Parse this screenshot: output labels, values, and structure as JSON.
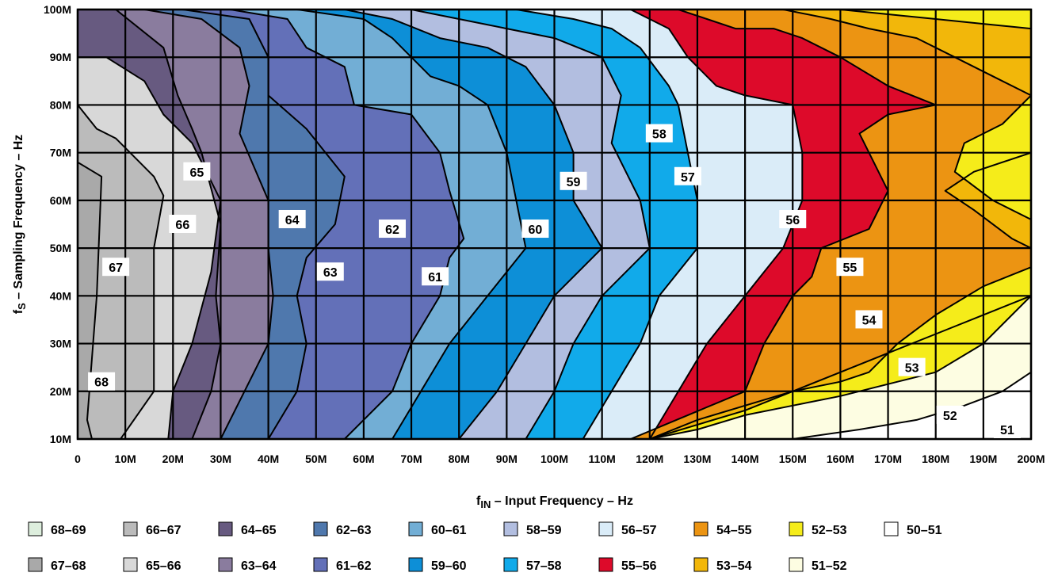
{
  "chart_data": {
    "type": "heatmap",
    "subtype": "filled-contour",
    "xlabel_main": "f",
    "xlabel_sub": "IN",
    "xlabel_rest": " – Input Frequency – Hz",
    "ylabel_main": "f",
    "ylabel_sub": "S",
    "ylabel_rest": " – Sampling Frequency – Hz",
    "xlim": [
      0,
      200
    ],
    "ylim": [
      10,
      100
    ],
    "x_tick_labels": [
      "0",
      "10M",
      "20M",
      "30M",
      "40M",
      "50M",
      "60M",
      "70M",
      "80M",
      "90M",
      "100M",
      "110M",
      "120M",
      "130M",
      "140M",
      "150M",
      "160M",
      "170M",
      "180M",
      "190M",
      "200M"
    ],
    "y_tick_labels": [
      "10M",
      "20M",
      "30M",
      "40M",
      "50M",
      "60M",
      "70M",
      "80M",
      "90M",
      "100M"
    ],
    "grid": true,
    "legend_position": "bottom",
    "bands": [
      {
        "range": "68–69",
        "color": "#ddeedd"
      },
      {
        "range": "67–68",
        "color": "#a9a9a9"
      },
      {
        "range": "66–67",
        "color": "#bbbbbb"
      },
      {
        "range": "65–66",
        "color": "#d8d8d8"
      },
      {
        "range": "64–65",
        "color": "#675a80"
      },
      {
        "range": "63–64",
        "color": "#8a7c9e"
      },
      {
        "range": "62–63",
        "color": "#4f78ad"
      },
      {
        "range": "61–62",
        "color": "#6370b8"
      },
      {
        "range": "60–61",
        "color": "#72aed5"
      },
      {
        "range": "59–60",
        "color": "#0d8fd7"
      },
      {
        "range": "58–59",
        "color": "#b2bee0"
      },
      {
        "range": "57–58",
        "color": "#11aaea"
      },
      {
        "range": "56–57",
        "color": "#daecf8"
      },
      {
        "range": "55–56",
        "color": "#dd0a2a"
      },
      {
        "range": "54–55",
        "color": "#ec9412"
      },
      {
        "range": "53–54",
        "color": "#f2b70a"
      },
      {
        "range": "52–53",
        "color": "#f5ec1a"
      },
      {
        "range": "51–52",
        "color": "#fdfde2"
      },
      {
        "range": "50–51",
        "color": "#ffffff"
      }
    ],
    "contour_labels": [
      {
        "text": "68",
        "x": 5,
        "y": 22
      },
      {
        "text": "67",
        "x": 8,
        "y": 46
      },
      {
        "text": "66",
        "x": 22,
        "y": 55
      },
      {
        "text": "65",
        "x": 25,
        "y": 66
      },
      {
        "text": "64",
        "x": 45,
        "y": 56
      },
      {
        "text": "63",
        "x": 53,
        "y": 45
      },
      {
        "text": "62",
        "x": 66,
        "y": 54
      },
      {
        "text": "61",
        "x": 75,
        "y": 44
      },
      {
        "text": "60",
        "x": 96,
        "y": 54
      },
      {
        "text": "59",
        "x": 104,
        "y": 64
      },
      {
        "text": "58",
        "x": 122,
        "y": 74
      },
      {
        "text": "57",
        "x": 128,
        "y": 65
      },
      {
        "text": "56",
        "x": 150,
        "y": 56
      },
      {
        "text": "55",
        "x": 162,
        "y": 46
      },
      {
        "text": "54",
        "x": 166,
        "y": 35
      },
      {
        "text": "53",
        "x": 175,
        "y": 25
      },
      {
        "text": "52",
        "x": 183,
        "y": 15
      },
      {
        "text": "51",
        "x": 195,
        "y": 12
      }
    ],
    "band_boundaries": [
      {
        "upper": "68–69",
        "lower": "67–68",
        "points": [
          [
            0,
            80
          ],
          [
            0,
            10
          ]
        ]
      },
      {
        "upper": "67–68",
        "lower": "66–67",
        "points": [
          [
            0,
            68
          ],
          [
            5,
            65
          ],
          [
            4,
            40
          ],
          [
            2,
            14
          ],
          [
            3,
            10
          ]
        ]
      },
      {
        "upper": "66–67",
        "lower": "65–66",
        "points": [
          [
            0,
            80
          ],
          [
            4,
            75
          ],
          [
            8,
            73
          ],
          [
            12,
            69
          ],
          [
            16,
            65
          ],
          [
            18,
            61
          ],
          [
            16,
            50
          ],
          [
            16,
            20
          ],
          [
            9,
            10
          ]
        ]
      },
      {
        "upper": "65–66",
        "lower": "64–65",
        "points": [
          [
            0,
            90
          ],
          [
            6,
            90
          ],
          [
            14,
            85
          ],
          [
            18,
            78
          ],
          [
            24,
            72
          ],
          [
            30,
            60
          ],
          [
            28,
            45
          ],
          [
            24,
            30
          ],
          [
            20,
            20
          ],
          [
            19,
            10
          ]
        ]
      },
      {
        "upper": "64–65",
        "lower": "63–64",
        "points": [
          [
            0,
            100
          ],
          [
            8,
            100
          ],
          [
            18,
            92
          ],
          [
            21,
            82
          ],
          [
            24,
            75
          ],
          [
            26,
            70
          ],
          [
            30,
            55
          ],
          [
            29,
            40
          ],
          [
            30,
            30
          ],
          [
            28,
            20
          ],
          [
            24,
            10
          ]
        ]
      },
      {
        "upper": "63–64",
        "lower": "62–63",
        "points": [
          [
            14,
            100
          ],
          [
            26,
            98
          ],
          [
            34,
            92
          ],
          [
            36,
            84
          ],
          [
            34,
            74
          ],
          [
            40,
            60
          ],
          [
            40,
            50
          ],
          [
            41,
            40
          ],
          [
            40,
            30
          ],
          [
            35,
            20
          ],
          [
            30,
            10
          ]
        ]
      },
      {
        "upper": "62–63",
        "lower": "61–62",
        "points": [
          [
            22,
            100
          ],
          [
            36,
            98
          ],
          [
            40,
            90
          ],
          [
            40,
            82
          ],
          [
            48,
            75
          ],
          [
            56,
            65
          ],
          [
            54,
            55
          ],
          [
            48,
            48
          ],
          [
            46,
            40
          ],
          [
            48,
            30
          ],
          [
            46,
            20
          ],
          [
            40,
            10
          ]
        ]
      },
      {
        "upper": "61–62",
        "lower": "60–61",
        "points": [
          [
            32,
            100
          ],
          [
            44,
            98
          ],
          [
            48,
            92
          ],
          [
            56,
            88
          ],
          [
            58,
            80
          ],
          [
            70,
            78
          ],
          [
            76,
            70
          ],
          [
            78,
            62
          ],
          [
            81,
            52
          ],
          [
            78,
            48
          ],
          [
            76,
            40
          ],
          [
            70,
            30
          ],
          [
            66,
            20
          ],
          [
            56,
            10
          ]
        ]
      },
      {
        "upper": "60–61",
        "lower": "59–60",
        "points": [
          [
            46,
            100
          ],
          [
            60,
            98
          ],
          [
            66,
            94
          ],
          [
            74,
            86
          ],
          [
            80,
            84
          ],
          [
            86,
            80
          ],
          [
            90,
            70
          ],
          [
            92,
            60
          ],
          [
            94,
            50
          ],
          [
            86,
            40
          ],
          [
            78,
            30
          ],
          [
            72,
            20
          ],
          [
            66,
            10
          ]
        ]
      },
      {
        "upper": "59–60",
        "lower": "58–59",
        "points": [
          [
            56,
            100
          ],
          [
            66,
            98
          ],
          [
            76,
            94
          ],
          [
            86,
            92
          ],
          [
            94,
            88
          ],
          [
            100,
            80
          ],
          [
            104,
            70
          ],
          [
            104,
            60
          ],
          [
            110,
            50
          ],
          [
            100,
            40
          ],
          [
            94,
            30
          ],
          [
            88,
            20
          ],
          [
            80,
            10
          ]
        ]
      },
      {
        "upper": "58–59",
        "lower": "57–58",
        "points": [
          [
            70,
            100
          ],
          [
            80,
            98
          ],
          [
            90,
            96
          ],
          [
            100,
            94
          ],
          [
            110,
            90
          ],
          [
            114,
            82
          ],
          [
            112,
            72
          ],
          [
            118,
            60
          ],
          [
            120,
            50
          ],
          [
            110,
            40
          ],
          [
            104,
            30
          ],
          [
            100,
            20
          ],
          [
            94,
            10
          ]
        ]
      },
      {
        "upper": "57–58",
        "lower": "56–57",
        "points": [
          [
            80,
            100
          ],
          [
            92,
            100
          ],
          [
            104,
            98
          ],
          [
            112,
            96
          ],
          [
            118,
            92
          ],
          [
            124,
            84
          ],
          [
            126,
            80
          ],
          [
            128,
            70
          ],
          [
            130,
            60
          ],
          [
            130,
            50
          ],
          [
            122,
            40
          ],
          [
            118,
            30
          ],
          [
            112,
            20
          ],
          [
            106,
            10
          ]
        ]
      },
      {
        "upper": "56–57",
        "lower": "55–56",
        "points": [
          [
            92,
            100
          ],
          [
            106,
            100
          ],
          [
            116,
            100
          ],
          [
            124,
            96
          ],
          [
            128,
            90
          ],
          [
            134,
            84
          ],
          [
            140,
            82
          ],
          [
            150,
            80
          ],
          [
            152,
            70
          ],
          [
            152,
            60
          ],
          [
            148,
            50
          ],
          [
            140,
            40
          ],
          [
            132,
            30
          ],
          [
            126,
            20
          ],
          [
            120,
            10
          ]
        ]
      },
      {
        "upper": "55–56",
        "lower": "54–55",
        "points": [
          [
            114,
            100
          ],
          [
            126,
            100
          ],
          [
            132,
            98
          ],
          [
            138,
            96
          ],
          [
            146,
            96
          ],
          [
            152,
            94
          ],
          [
            160,
            90
          ],
          [
            170,
            84
          ],
          [
            180,
            80
          ],
          [
            170,
            78
          ],
          [
            164,
            74
          ],
          [
            170,
            62
          ],
          [
            166,
            54
          ],
          [
            156,
            50
          ],
          [
            154,
            44
          ],
          [
            150,
            40
          ],
          [
            144,
            30
          ],
          [
            140,
            20
          ],
          [
            128,
            15
          ],
          [
            116,
            10
          ]
        ]
      },
      {
        "upper": "54–55",
        "lower": "53–54",
        "points": [
          [
            136,
            100
          ],
          [
            148,
            100
          ],
          [
            158,
            98
          ],
          [
            166,
            96
          ],
          [
            176,
            94
          ],
          [
            184,
            90
          ],
          [
            192,
            86
          ],
          [
            200,
            82
          ],
          [
            200,
            70
          ],
          [
            188,
            66
          ],
          [
            182,
            62
          ],
          [
            188,
            58
          ],
          [
            196,
            52
          ],
          [
            200,
            50
          ],
          [
            200,
            40
          ],
          [
            190,
            36
          ],
          [
            180,
            32
          ],
          [
            170,
            28
          ],
          [
            160,
            24
          ],
          [
            150,
            20
          ],
          [
            140,
            17
          ],
          [
            130,
            14
          ],
          [
            120,
            10
          ]
        ]
      },
      {
        "upper": "53–54",
        "lower": "52–53",
        "points": [
          [
            148,
            100
          ],
          [
            160,
            100
          ],
          [
            170,
            99
          ],
          [
            180,
            98
          ],
          [
            190,
            97
          ],
          [
            200,
            96
          ],
          [
            200,
            82
          ],
          [
            194,
            76
          ],
          [
            186,
            72
          ],
          [
            184,
            66
          ],
          [
            192,
            60
          ],
          [
            200,
            56
          ],
          [
            200,
            46
          ],
          [
            190,
            42
          ],
          [
            180,
            36
          ],
          [
            172,
            30
          ],
          [
            166,
            24
          ],
          [
            160,
            22
          ],
          [
            150,
            20
          ],
          [
            140,
            16
          ],
          [
            130,
            13
          ],
          [
            120,
            10
          ]
        ]
      },
      {
        "upper": "52–53",
        "lower": "51–52",
        "points": [
          [
            180,
            100
          ],
          [
            186,
            100
          ],
          [
            192,
            100
          ],
          [
            200,
            100
          ],
          [
            200,
            40
          ],
          [
            190,
            30
          ],
          [
            180,
            24
          ],
          [
            172,
            22
          ],
          [
            160,
            19
          ],
          [
            150,
            17
          ],
          [
            140,
            15
          ],
          [
            130,
            12
          ],
          [
            120,
            10
          ]
        ]
      },
      {
        "upper": "51–52",
        "lower": "50–51",
        "points": [
          [
            200,
            24
          ],
          [
            194,
            20
          ],
          [
            186,
            17
          ],
          [
            176,
            14
          ],
          [
            164,
            12
          ],
          [
            150,
            10
          ]
        ]
      }
    ]
  }
}
